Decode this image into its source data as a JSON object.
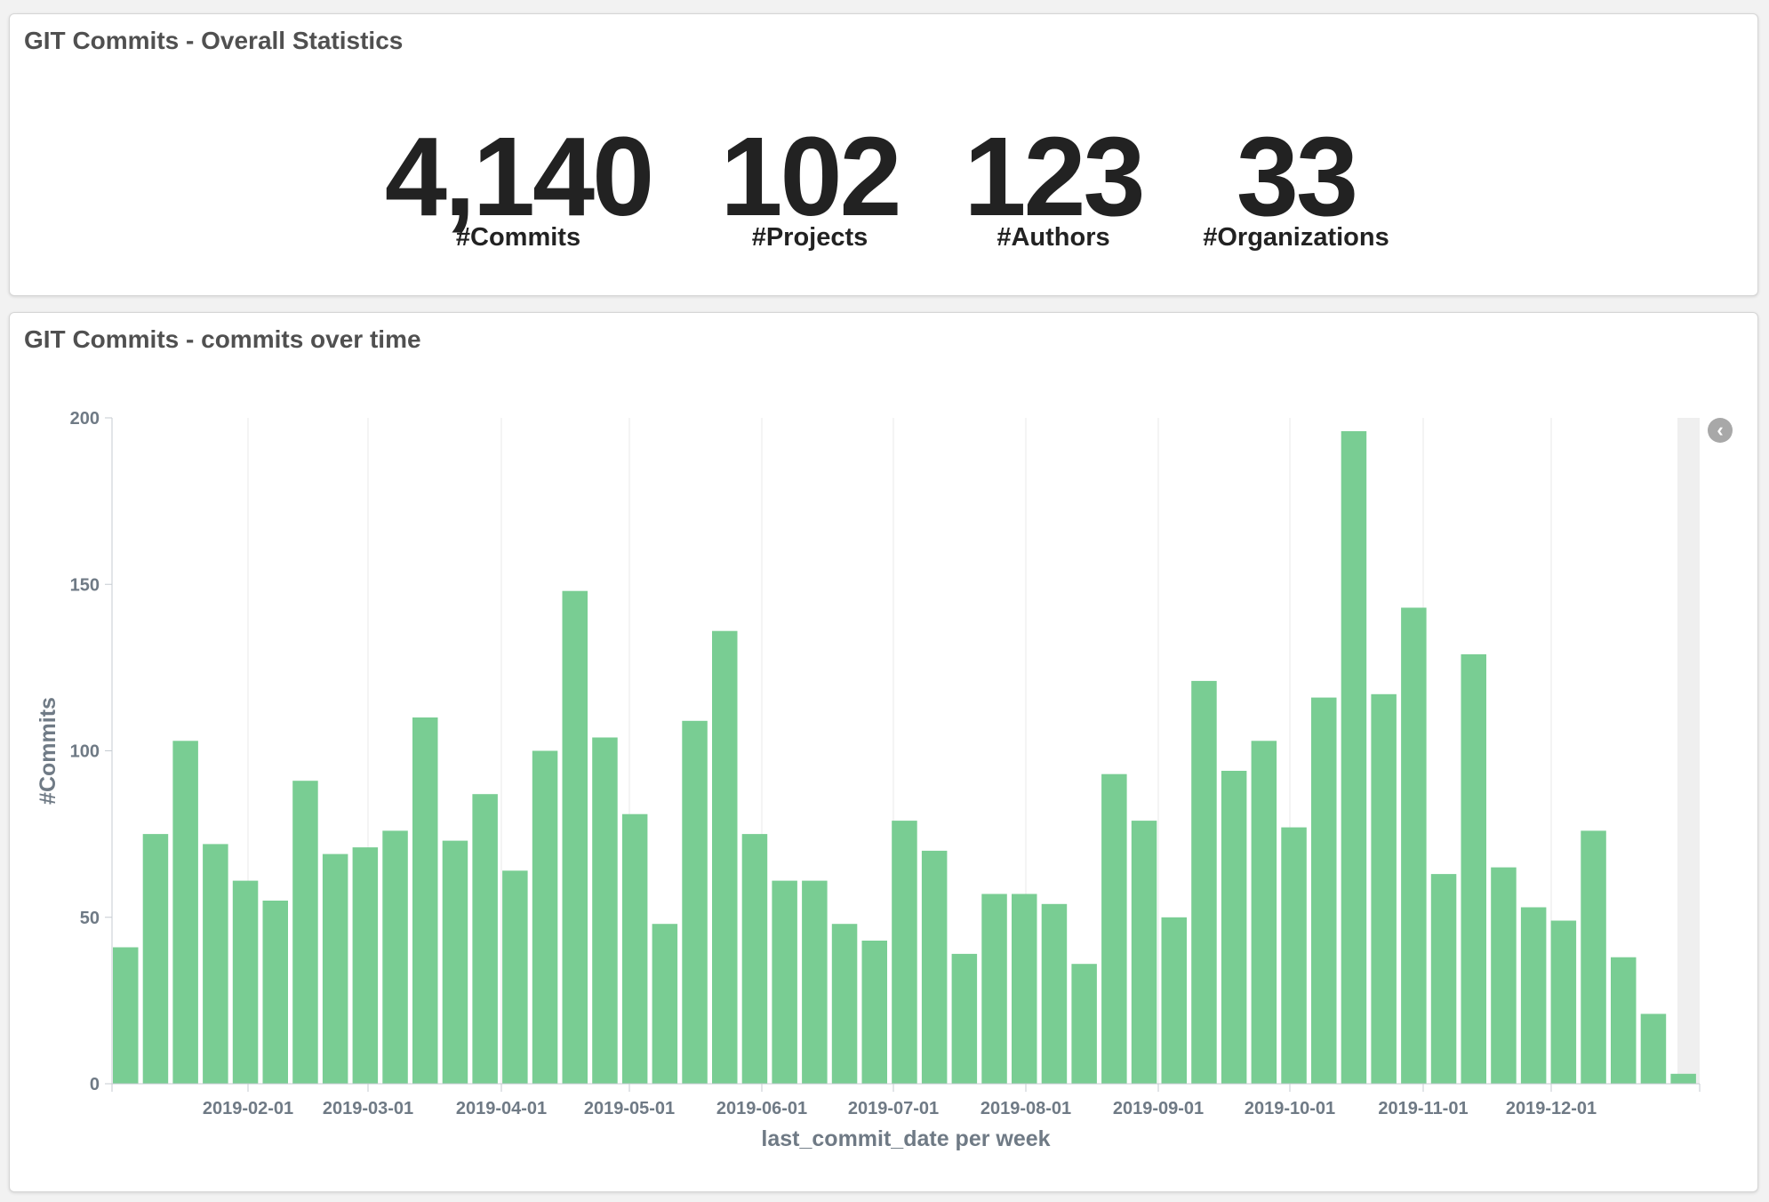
{
  "stats_panel": {
    "title": "GIT Commits - Overall Statistics",
    "metrics": [
      {
        "value": "4,140",
        "label": "#Commits"
      },
      {
        "value": "102",
        "label": "#Projects"
      },
      {
        "value": "123",
        "label": "#Authors"
      },
      {
        "value": "33",
        "label": "#Organizations"
      }
    ]
  },
  "chart_panel": {
    "title": "GIT Commits - commits over time",
    "legend_toggle_icon": "chevron-left-icon"
  },
  "colors": {
    "bar": "#79cd93",
    "grid": "#e8e8e8",
    "axis": "#c5cbd1"
  },
  "chart_data": {
    "type": "bar",
    "xlabel": "last_commit_date per week",
    "ylabel": "#Commits",
    "ylim": [
      0,
      200
    ],
    "y_ticks": [
      0,
      50,
      100,
      150,
      200
    ],
    "x_tick_labels": [
      "2019-02-01",
      "2019-03-01",
      "2019-04-01",
      "2019-05-01",
      "2019-06-01",
      "2019-07-01",
      "2019-08-01",
      "2019-09-01",
      "2019-10-01",
      "2019-11-01",
      "2019-12-01"
    ],
    "grid": true,
    "series": [
      {
        "values": [
          41,
          75,
          103,
          72,
          61,
          55,
          91,
          69,
          71,
          76,
          110,
          73,
          87,
          64,
          100,
          148,
          104,
          81,
          48,
          109,
          136,
          75,
          61,
          61,
          48,
          43,
          79,
          70,
          39,
          57,
          57,
          54,
          36,
          93,
          79,
          50,
          121,
          94,
          103,
          77,
          116,
          196,
          117,
          143,
          63,
          129,
          65,
          53,
          49,
          76,
          38,
          21,
          3
        ]
      }
    ]
  }
}
